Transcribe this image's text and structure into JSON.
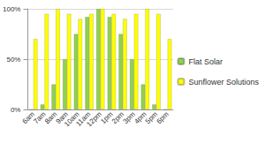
{
  "chart_data": {
    "type": "bar",
    "categories": [
      "6am",
      "7am",
      "8am",
      "9am",
      "10am",
      "11am",
      "12pm",
      "1pm",
      "2pm",
      "3pm",
      "4pm",
      "5pm",
      "6pm"
    ],
    "series": [
      {
        "name": "Flat Solar",
        "color": "#92d050",
        "values": [
          0,
          5,
          25,
          50,
          75,
          92,
          100,
          92,
          75,
          50,
          25,
          5,
          0
        ]
      },
      {
        "name": "Sunflower Solutions",
        "color": "#ffff00",
        "values": [
          70,
          95,
          100,
          95,
          90,
          95,
          100,
          95,
          90,
          95,
          100,
          95,
          70
        ]
      }
    ],
    "ylim": [
      0,
      100
    ],
    "yticks": [
      {
        "value": 0,
        "label": "0%"
      },
      {
        "value": 50,
        "label": "50%"
      },
      {
        "value": 100,
        "label": "100%"
      }
    ],
    "grid": true,
    "legend": "right"
  }
}
